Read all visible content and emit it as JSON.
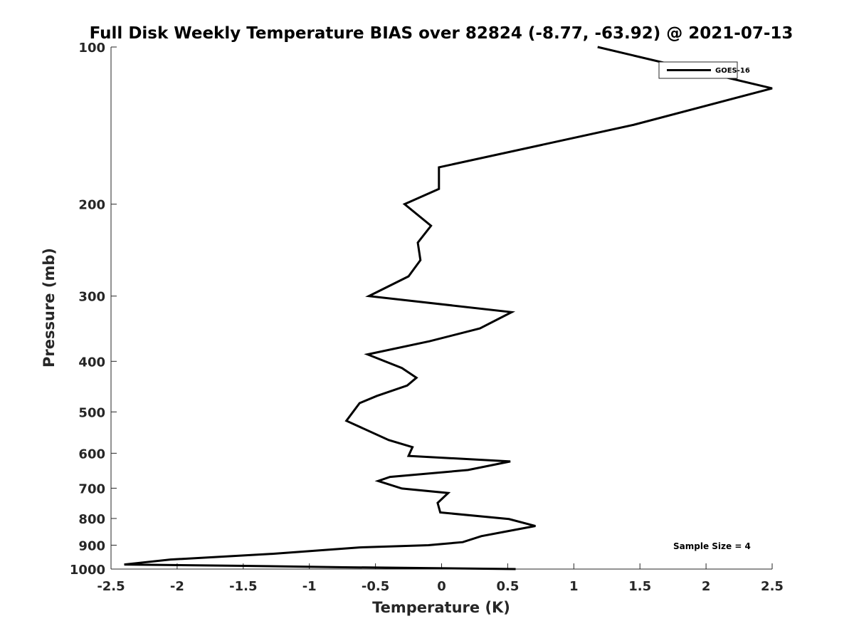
{
  "chart_data": {
    "type": "line",
    "title": "Full Disk Weekly Temperature BIAS over 82824 (-8.77, -63.92) @ 2021-07-13",
    "xlabel": "Temperature (K)",
    "ylabel": "Pressure (mb)",
    "xlim": [
      -2.5,
      2.5
    ],
    "ylim": [
      100,
      1000
    ],
    "y_scale": "log",
    "y_reversed": true,
    "grid": false,
    "legend_position": "top-right",
    "x_ticks": [
      -2.5,
      -2,
      -1.5,
      -1,
      -0.5,
      0,
      0.5,
      1,
      1.5,
      2,
      2.5
    ],
    "x_tick_labels": [
      "-2.5",
      "-2",
      "-1.5",
      "-1",
      "-0.5",
      "0",
      "0.5",
      "1",
      "1.5",
      "2",
      "2.5"
    ],
    "y_ticks": [
      100,
      200,
      300,
      400,
      500,
      600,
      700,
      800,
      900,
      1000
    ],
    "y_tick_labels": [
      "100",
      "200",
      "300",
      "400",
      "500",
      "600",
      "700",
      "800",
      "900",
      "1000"
    ],
    "series": [
      {
        "name": "GOES-16",
        "color": "#000000",
        "points": [
          {
            "x": 1.18,
            "y": 100
          },
          {
            "x": 2.5,
            "y": 120
          },
          {
            "x": 1.45,
            "y": 141
          },
          {
            "x": -0.02,
            "y": 170
          },
          {
            "x": -0.02,
            "y": 187
          },
          {
            "x": -0.28,
            "y": 200
          },
          {
            "x": -0.08,
            "y": 220
          },
          {
            "x": -0.18,
            "y": 237
          },
          {
            "x": -0.16,
            "y": 256
          },
          {
            "x": -0.25,
            "y": 275
          },
          {
            "x": -0.55,
            "y": 300
          },
          {
            "x": 0.53,
            "y": 322
          },
          {
            "x": 0.29,
            "y": 346
          },
          {
            "x": -0.09,
            "y": 366
          },
          {
            "x": -0.56,
            "y": 388
          },
          {
            "x": -0.3,
            "y": 412
          },
          {
            "x": -0.19,
            "y": 430
          },
          {
            "x": -0.26,
            "y": 445
          },
          {
            "x": -0.49,
            "y": 466
          },
          {
            "x": -0.62,
            "y": 481
          },
          {
            "x": -0.72,
            "y": 520
          },
          {
            "x": -0.4,
            "y": 566
          },
          {
            "x": -0.22,
            "y": 584
          },
          {
            "x": -0.25,
            "y": 607
          },
          {
            "x": 0.52,
            "y": 622
          },
          {
            "x": 0.2,
            "y": 646
          },
          {
            "x": -0.39,
            "y": 666
          },
          {
            "x": -0.48,
            "y": 678
          },
          {
            "x": -0.3,
            "y": 701
          },
          {
            "x": 0.05,
            "y": 715
          },
          {
            "x": -0.03,
            "y": 747
          },
          {
            "x": -0.01,
            "y": 779
          },
          {
            "x": 0.51,
            "y": 802
          },
          {
            "x": 0.71,
            "y": 827
          },
          {
            "x": 0.48,
            "y": 848
          },
          {
            "x": 0.3,
            "y": 865
          },
          {
            "x": 0.16,
            "y": 888
          },
          {
            "x": -0.1,
            "y": 900
          },
          {
            "x": -0.62,
            "y": 909
          },
          {
            "x": -1.28,
            "y": 935
          },
          {
            "x": -2.05,
            "y": 959
          },
          {
            "x": -2.4,
            "y": 980
          },
          {
            "x": -1.49,
            "y": 986
          },
          {
            "x": -0.73,
            "y": 992
          },
          {
            "x": 0.56,
            "y": 1000
          }
        ]
      }
    ],
    "annotations": [
      {
        "text": "Sample Size = 4"
      }
    ]
  }
}
